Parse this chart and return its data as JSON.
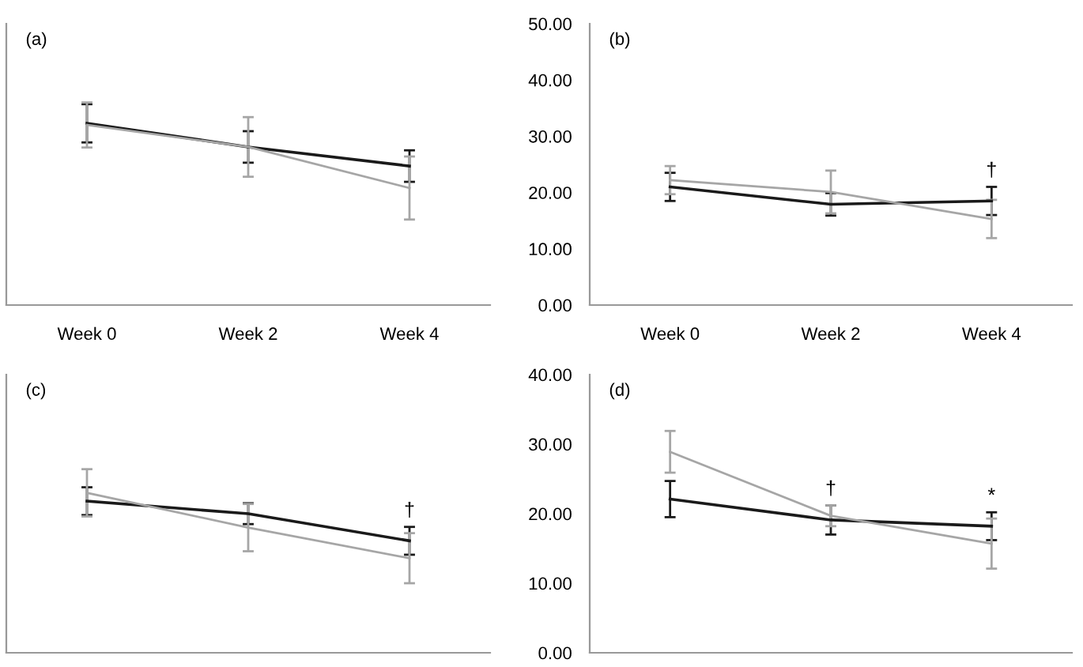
{
  "chart_data": [
    {
      "type": "line",
      "title": "(a)",
      "categories": [
        "Week 0",
        "Week 2",
        "Week 4"
      ],
      "marker": "none",
      "grid": false,
      "legend": false,
      "tick_labels": "x",
      "ylim": [
        0,
        50
      ],
      "series": [
        {
          "color": "#1a1a1a",
          "values": [
            32.3,
            28.1,
            24.7
          ],
          "errors": [
            3.4,
            2.8,
            2.8
          ]
        },
        {
          "color": "#a6a6a6",
          "values": [
            32.0,
            28.1,
            20.8
          ],
          "errors": [
            4.0,
            5.3,
            5.6
          ]
        }
      ]
    },
    {
      "type": "line",
      "title": "(b)",
      "categories": [
        "Week 0",
        "Week 2",
        "Week 4"
      ],
      "marker": "none",
      "grid": false,
      "legend": false,
      "ylim": [
        0,
        50
      ],
      "yticks": [
        {
          "value": 0,
          "label": "0.00"
        },
        {
          "value": 10,
          "label": "10.00"
        },
        {
          "value": 20,
          "label": "20.00"
        },
        {
          "value": 30,
          "label": "30.00"
        },
        {
          "value": 40,
          "label": "40.00"
        },
        {
          "value": 50,
          "label": "50.00"
        }
      ],
      "series": [
        {
          "color": "#1a1a1a",
          "values": [
            21.0,
            17.9,
            18.5
          ],
          "errors": [
            2.5,
            2.0,
            2.5
          ]
        },
        {
          "color": "#a6a6a6",
          "values": [
            22.2,
            20.1,
            15.3
          ],
          "errors": [
            2.5,
            3.8,
            3.4
          ]
        }
      ],
      "annotations": [
        {
          "text": "†",
          "x": "Week 4",
          "y": 21.0
        }
      ]
    },
    {
      "type": "line",
      "title": "(c)",
      "categories": [
        "Week 0",
        "Week 2",
        "Week 4"
      ],
      "marker": "none",
      "grid": false,
      "legend": false,
      "tick_labels": false,
      "ylim": [
        0,
        40
      ],
      "series": [
        {
          "color": "#1a1a1a",
          "values": [
            21.8,
            20.0,
            16.1
          ],
          "errors": [
            2.0,
            1.5,
            2.0
          ]
        },
        {
          "color": "#a6a6a6",
          "values": [
            23.0,
            18.0,
            13.6
          ],
          "errors": [
            3.4,
            3.4,
            3.6
          ]
        }
      ],
      "annotations": [
        {
          "text": "†",
          "x": "Week 4",
          "y": 18.1
        }
      ]
    },
    {
      "type": "line",
      "title": "(d)",
      "categories": [
        "Week 0",
        "Week 2",
        "Week 4"
      ],
      "marker": "none",
      "grid": false,
      "legend": false,
      "tick_labels": "y",
      "ylim": [
        0,
        40
      ],
      "yticks": [
        {
          "value": 0,
          "label": "0.00"
        },
        {
          "value": 10,
          "label": "10.00"
        },
        {
          "value": 20,
          "label": "20.00"
        },
        {
          "value": 30,
          "label": "30.00"
        },
        {
          "value": 40,
          "label": "40.00"
        }
      ],
      "series": [
        {
          "color": "#1a1a1a",
          "values": [
            22.1,
            19.1,
            18.2
          ],
          "errors": [
            2.6,
            2.1,
            2.0
          ]
        },
        {
          "color": "#a6a6a6",
          "values": [
            28.9,
            19.7,
            15.7
          ],
          "errors": [
            3.0,
            1.5,
            3.6
          ]
        }
      ],
      "annotations": [
        {
          "text": "†",
          "x": "Week 2",
          "y": 21.2
        },
        {
          "text": "*",
          "x": "Week 4",
          "y": 20.2
        }
      ]
    }
  ]
}
